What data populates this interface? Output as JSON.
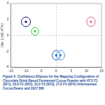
{
  "chart_data": {
    "type": "scatter",
    "y_label": "Dim 1 (40.47%)",
    "caption": "Figure 5: Confidence Ellipses for the Mapping Configuration of Chocolate Drink Based Fermented Cocoa Powder with 47J/ F1 (SF1), 52J/ F2 (SF2), 31J/ F3 (SF3), 17J/ F4 (SF4) Unfermented Cocoa Beans and 2917 BM",
    "xlim": [
      -15,
      15
    ],
    "xticks": [
      -15,
      -10,
      -5,
      0,
      5,
      10,
      15
    ],
    "ylim": [
      -4,
      4
    ],
    "yticks": [
      -4,
      -2,
      0,
      2,
      4
    ],
    "grid": false,
    "series": [
      {
        "color": "#1a1a6e",
        "center": [
          -10,
          1.7
        ],
        "radius": [
          1.5,
          0.6
        ]
      },
      {
        "color": "#2ecc40",
        "center": [
          -7,
          0.5
        ],
        "radius": [
          1.2,
          0.5
        ]
      },
      {
        "color": "#e0607e",
        "center": [
          11.5,
          1.7
        ],
        "radius": [
          1.4,
          0.6
        ]
      },
      {
        "color": "#1f5fbf",
        "center": [
          0,
          -2.5
        ],
        "radius": [
          1.3,
          0.6
        ]
      },
      {
        "color": "#3a8fd8",
        "center": [
          1.5,
          -2.5
        ],
        "radius": [
          1.3,
          0.6
        ]
      }
    ]
  }
}
